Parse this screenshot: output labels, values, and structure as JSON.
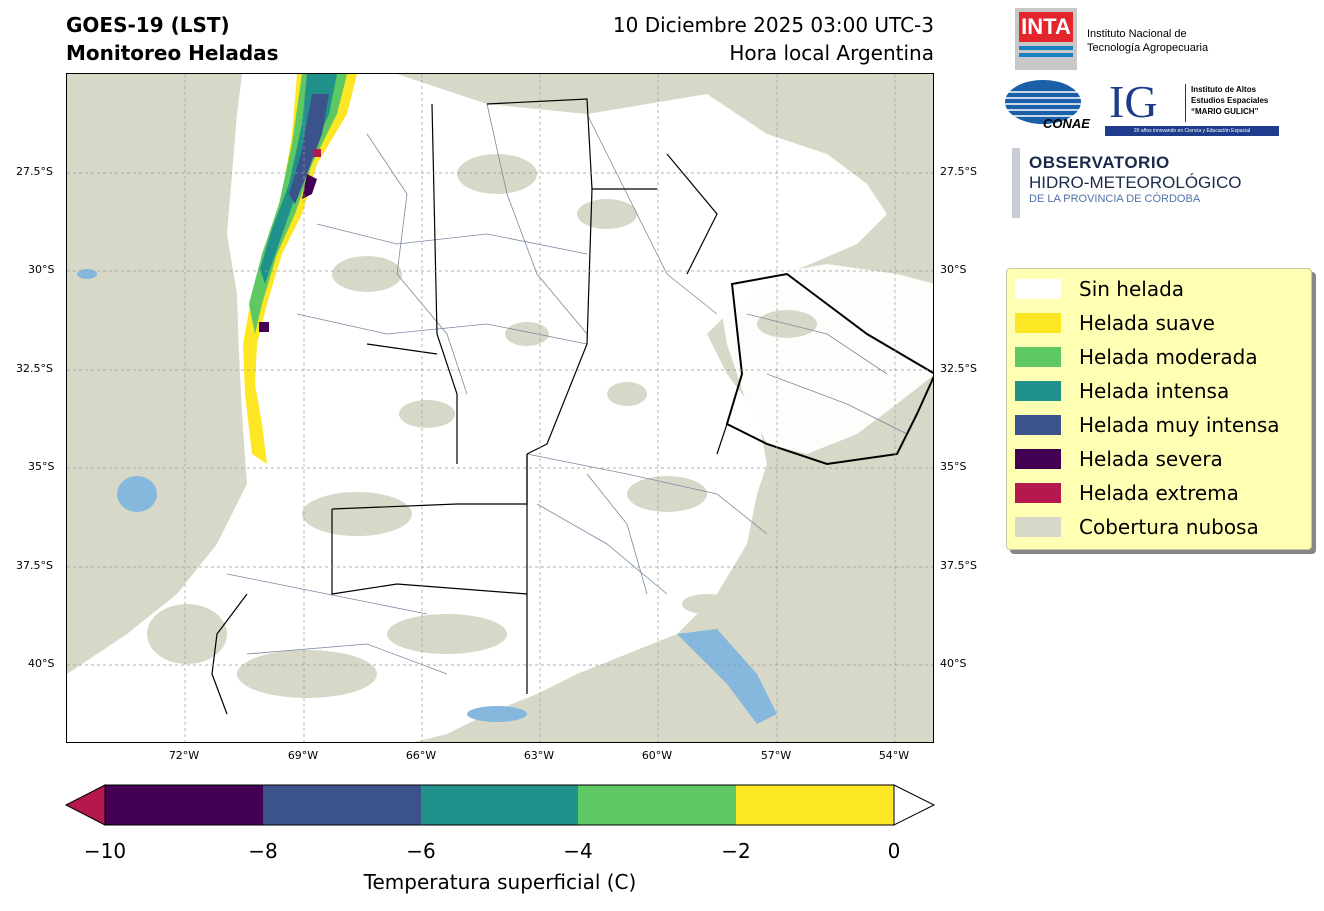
{
  "header": {
    "title_line1": "GOES-19 (LST)",
    "title_line2": "Monitoreo Heladas",
    "date_line1": "10 Diciembre 2025 03:00 UTC-3",
    "date_line2": "Hora local Argentina"
  },
  "map": {
    "lat_ticks": [
      "27.5°S",
      "30°S",
      "32.5°S",
      "35°S",
      "37.5°S",
      "40°S"
    ],
    "lon_ticks": [
      "72°W",
      "69°W",
      "66°W",
      "63°W",
      "60°W",
      "57°W",
      "54°W"
    ],
    "cloud_color": "#d8d8c8",
    "water_color": "#85b8dc",
    "land_color": "#ffffff"
  },
  "legend": {
    "items": [
      {
        "label": "Sin helada",
        "color": "#ffffff"
      },
      {
        "label": "Helada suave",
        "color": "#fde725"
      },
      {
        "label": "Helada moderada",
        "color": "#5ec962"
      },
      {
        "label": "Helada intensa",
        "color": "#21918c"
      },
      {
        "label": "Helada muy intensa",
        "color": "#3b528b"
      },
      {
        "label": "Helada severa",
        "color": "#440154"
      },
      {
        "label": "Helada extrema",
        "color": "#b5174f"
      },
      {
        "label": "Cobertura nubosa",
        "color": "#d8d8c8"
      }
    ]
  },
  "colorbar": {
    "label": "Temperatura superficial (C)",
    "ticks": [
      "−10",
      "−8",
      "−6",
      "−4",
      "−2",
      "0"
    ],
    "colors": [
      "#440154",
      "#3b528b",
      "#21918c",
      "#5ec962",
      "#fde725"
    ],
    "under_color": "#b5174f",
    "over_color": "#ffffff"
  },
  "logos": {
    "inta_mark": "INTA",
    "inta_line1": "Instituto Nacional de",
    "inta_line2": "Tecnología Agropecuaria",
    "conae": "CONAE",
    "ig_mark": "IG",
    "ig_line1": "Instituto de Altos",
    "ig_line2": "Estudios Espaciales",
    "ig_line3": "“MARIO GULICH”",
    "ig_tagline": "20 años innovando en Ciencia y Educación Espacial",
    "obs_line1": "OBSERVATORIO",
    "obs_line2": "HIDRO-METEOROLÓGICO",
    "obs_line3": "DE LA PROVINCIA DE CÓRDOBA"
  }
}
